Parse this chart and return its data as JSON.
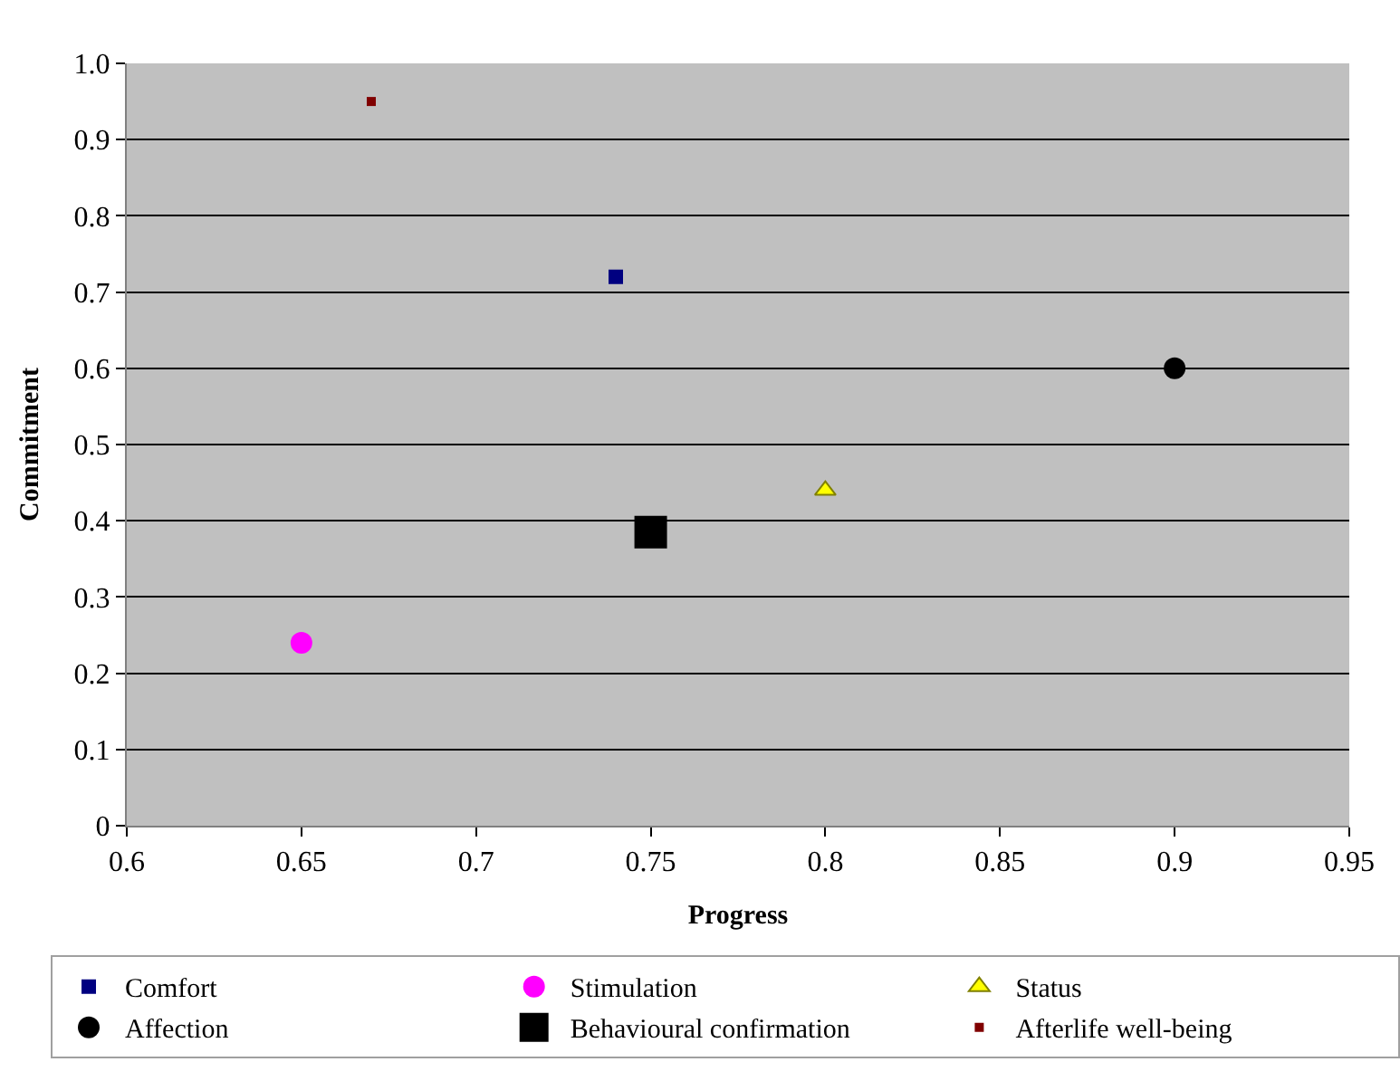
{
  "chart_data": {
    "type": "scatter",
    "xlabel": "Progress",
    "ylabel": "Commitment",
    "xlim": [
      0.6,
      0.95
    ],
    "xticks": [
      0.6,
      0.65,
      0.7,
      0.75,
      0.8,
      0.85,
      0.9,
      0.95
    ],
    "ylim": [
      0,
      1
    ],
    "yticks": [
      0,
      0.1,
      0.2,
      0.3,
      0.4,
      0.5,
      0.6,
      0.7,
      0.8,
      0.9,
      {
        "value": 1,
        "label": "1.0"
      }
    ],
    "grid": "y",
    "legend": "bottom",
    "series": [
      {
        "name": "Comfort",
        "color": "#000080",
        "marker": "square",
        "x": [
          0.74
        ],
        "values": [
          0.72
        ]
      },
      {
        "name": "Stimulation",
        "color": "#ff00ff",
        "marker": "circle",
        "x": [
          0.65
        ],
        "values": [
          0.24
        ]
      },
      {
        "name": "Status",
        "color": "#ffff00",
        "marker": "triangle",
        "x": [
          0.8
        ],
        "values": [
          0.44
        ]
      },
      {
        "name": "Affection",
        "color": "#000000",
        "marker": "circle",
        "x": [
          0.9
        ],
        "values": [
          0.6
        ]
      },
      {
        "name": "Behavioural confirmation",
        "color": "#000000",
        "marker": "square",
        "x": [
          0.75
        ],
        "values": [
          0.385
        ]
      },
      {
        "name": "Afterlife well-being",
        "color": "#800000",
        "marker": "square",
        "x": [
          0.67
        ],
        "values": [
          0.95
        ]
      }
    ]
  }
}
